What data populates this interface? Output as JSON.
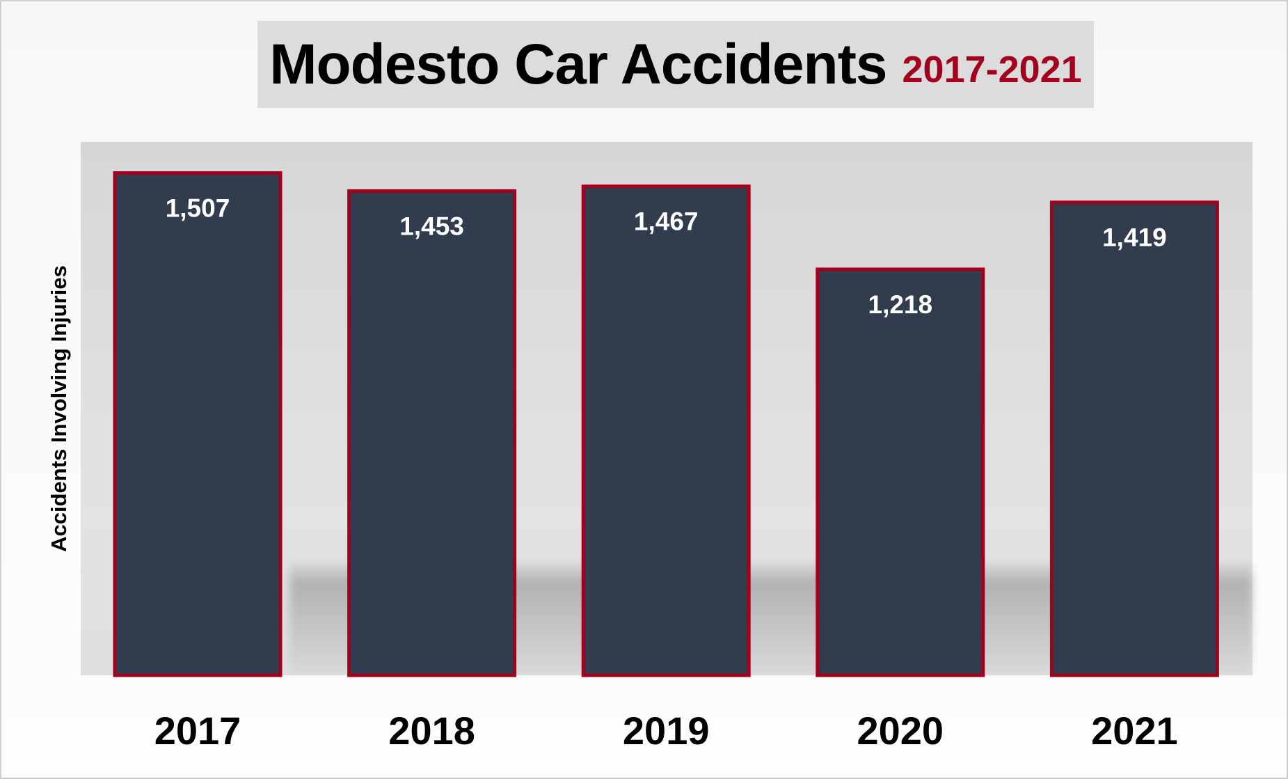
{
  "chart_data": {
    "type": "bar",
    "title": "Modesto Car Accidents",
    "subtitle": "2017-2021",
    "xlabel": "",
    "ylabel": "Accidents Involving Injuries",
    "categories": [
      "2017",
      "2018",
      "2019",
      "2020",
      "2021"
    ],
    "values": [
      1507,
      1453,
      1467,
      1218,
      1419
    ],
    "data_labels": [
      "1,507",
      "1,453",
      "1,467",
      "1,218",
      "1,419"
    ],
    "ylim": [
      0,
      1600
    ],
    "grid": false,
    "legend": "none",
    "colors": {
      "bar_fill": "#323c4f",
      "bar_border": "#a3001e",
      "subtitle": "#a3001e",
      "label": "#ffffff"
    }
  }
}
